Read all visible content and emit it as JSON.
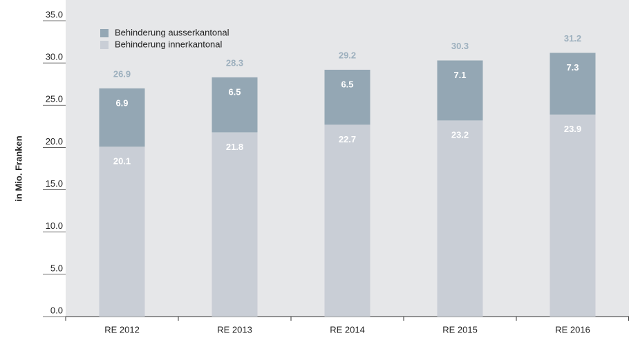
{
  "chart_data": {
    "type": "stacked_bar",
    "y_label": "in Mio. Franken",
    "categories": [
      "RE 2012",
      "RE 2013",
      "RE 2014",
      "RE 2015",
      "RE 2016"
    ],
    "series": [
      {
        "name": "Behinderung innerkantonal",
        "color": "#c9ced6",
        "values": [
          20.1,
          21.8,
          22.7,
          23.2,
          23.9
        ]
      },
      {
        "name": "Behinderung ausserkantonal",
        "color": "#94a7b4",
        "values": [
          6.9,
          6.5,
          6.5,
          7.1,
          7.3
        ]
      }
    ],
    "totals": [
      26.9,
      28.3,
      29.2,
      30.3,
      31.2
    ],
    "totals_color": "#9db0be",
    "ylim": [
      0,
      35
    ],
    "yticks": [
      {
        "value": 0,
        "label": "0.0"
      },
      {
        "value": 5,
        "label": "5.0"
      },
      {
        "value": 10,
        "label": "10.0"
      },
      {
        "value": 15,
        "label": "15.0"
      },
      {
        "value": 20,
        "label": "20.0"
      },
      {
        "value": 25,
        "label": "25.0"
      },
      {
        "value": 30,
        "label": "30.0"
      },
      {
        "value": 35,
        "label": "35.0"
      }
    ],
    "legend": "top-left"
  }
}
